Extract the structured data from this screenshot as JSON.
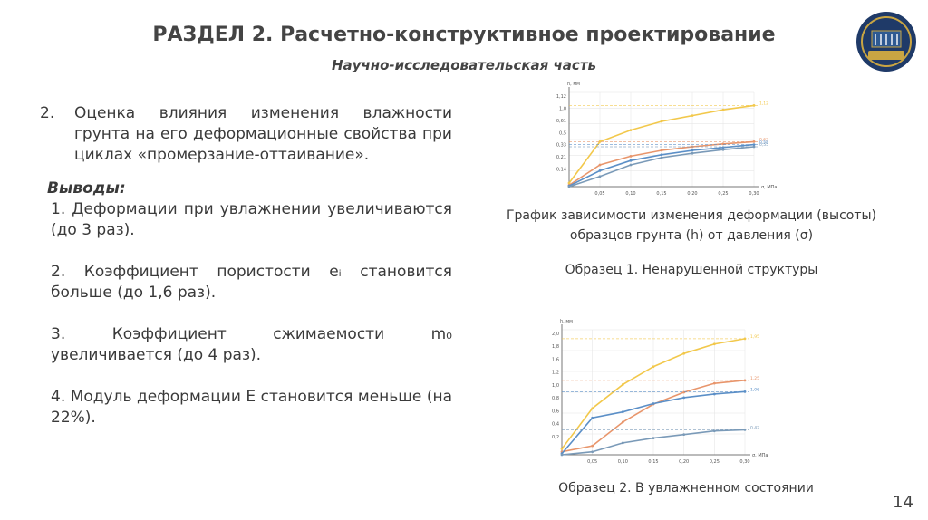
{
  "header": {
    "title": "РАЗДЕЛ 2. Расчетно-конструктивное проектирование",
    "subtitle": "Научно-исследовательская часть"
  },
  "content": {
    "item_number": "2.",
    "item_text": "Оценка влияния изменения влажности грунта на его деформационные свойства при циклах «промерзание-оттаивание».",
    "conclusions_label": "Выводы:",
    "conclusions": [
      "1. Деформации при увлажнении увеличиваются (до 3 раз).",
      "2. Коэффициент пористости eᵢ становится больше (до 1,6 раз).",
      "3. Коэффициент сжимаемости m₀ увеличивается (до 4 раз).",
      "4. Модуль деформации Е становится меньше (на 22%)."
    ]
  },
  "figure": {
    "caption_main": "График зависимости изменения деформации (высоты) образцов грунта (h) от давления (σ)",
    "caption_sample1": "Образец 1. Ненарушенной структуры",
    "caption_sample2": "Образец 2. В увлажненном состоянии"
  },
  "page_number": "14",
  "colors": {
    "series": [
      "#f2c84b",
      "#e8956b",
      "#5b8fc7",
      "#7a9ab8"
    ]
  },
  "chart_data": [
    {
      "type": "line",
      "xlabel": "σ, МПа",
      "ylabel": "h, мм",
      "x": [
        0,
        0.05,
        0.1,
        0.15,
        0.2,
        0.25,
        0.3
      ],
      "x_ticks": [
        "0,05",
        "0,10",
        "0,15",
        "0,20",
        "0,25",
        "0,30"
      ],
      "y_ticks": [
        "1,12",
        "1,0",
        "0,61",
        "0,5",
        "0,33",
        "0,21",
        "0,14"
      ],
      "ylim": [
        0,
        1.3
      ],
      "series": [
        {
          "values": [
            0.05,
            0.62,
            0.78,
            0.9,
            0.98,
            1.06,
            1.12
          ],
          "end_label": "1,12"
        },
        {
          "values": [
            0.02,
            0.3,
            0.42,
            0.5,
            0.55,
            0.59,
            0.62
          ],
          "end_label": "0,62"
        },
        {
          "values": [
            0.01,
            0.22,
            0.36,
            0.44,
            0.5,
            0.54,
            0.58
          ],
          "end_label": "0,58"
        },
        {
          "values": [
            0.0,
            0.14,
            0.3,
            0.4,
            0.46,
            0.51,
            0.55
          ],
          "end_label": "0,55"
        }
      ]
    },
    {
      "type": "line",
      "xlabel": "σ, МПа",
      "ylabel": "h, мм",
      "x": [
        0,
        0.05,
        0.1,
        0.15,
        0.2,
        0.25,
        0.3
      ],
      "x_ticks": [
        "0,05",
        "0,10",
        "0,15",
        "0,20",
        "0,25",
        "0,30"
      ],
      "y_ticks": [
        "2,0",
        "1,8",
        "1,6",
        "1,2",
        "1,0",
        "0,8",
        "0,6",
        "0,4",
        "0,2"
      ],
      "ylim": [
        0,
        2.1
      ],
      "series": [
        {
          "values": [
            0.1,
            0.78,
            1.18,
            1.48,
            1.7,
            1.86,
            1.95
          ],
          "end_label": "1,95"
        },
        {
          "values": [
            0.05,
            0.15,
            0.55,
            0.85,
            1.05,
            1.2,
            1.25
          ],
          "end_label": "1,25"
        },
        {
          "values": [
            0.02,
            0.62,
            0.72,
            0.86,
            0.96,
            1.02,
            1.06
          ],
          "end_label": "1,06"
        },
        {
          "values": [
            0.0,
            0.05,
            0.2,
            0.28,
            0.34,
            0.4,
            0.42
          ],
          "end_label": "0,42"
        }
      ]
    }
  ]
}
